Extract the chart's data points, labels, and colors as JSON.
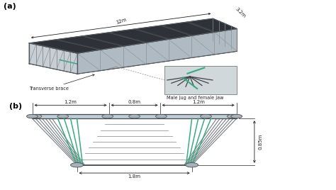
{
  "background_color": "#ffffff",
  "fig_width": 4.74,
  "fig_height": 2.68,
  "dpi": 100,
  "label_a": "(a)",
  "label_b": "(b)",
  "label_fontsize": 8,
  "label_fontweight": "bold",
  "dim_color": "#222222",
  "annotation_fontsize": 5.0,
  "top_dims": {
    "length_label": "12m",
    "width_label": "3.2m",
    "transverse_label": "Transverse brace",
    "connector_label": "Male jug and female jaw"
  },
  "bottom_dims": {
    "left_label": "1.2m",
    "mid_label": "0.8m",
    "right_label": "1.2m",
    "height_label": "0.85m",
    "base_label": "1.8m"
  },
  "steel_light": "#c8cfd4",
  "steel_mid": "#a0acb4",
  "steel_dark": "#707880",
  "deck_dark": "#3a3d42",
  "deck_panel": "#2e3238",
  "green_accent": "#3aaa80",
  "edge_color": "#555a60",
  "truss_color": "#8a9298"
}
